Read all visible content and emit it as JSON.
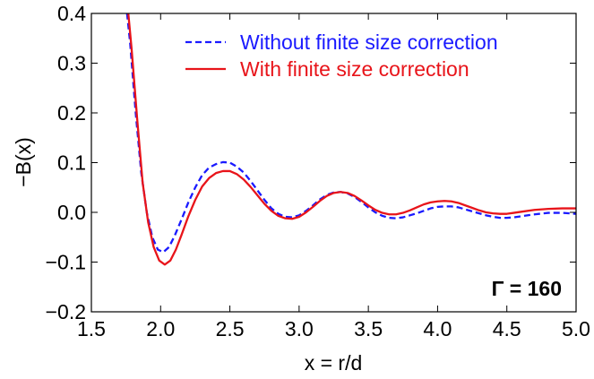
{
  "chart_data": {
    "type": "line",
    "xlabel": "x = r/d",
    "ylabel": "−B(x)",
    "xlim": [
      1.5,
      5.0
    ],
    "ylim": [
      -0.2,
      0.4
    ],
    "xticks": [
      1.5,
      2.0,
      2.5,
      3.0,
      3.5,
      4.0,
      4.5,
      5.0
    ],
    "xtick_labels": [
      "1.5",
      "2.0",
      "2.5",
      "3.0",
      "3.5",
      "4.0",
      "4.5",
      "5.0"
    ],
    "yticks": [
      -0.2,
      -0.1,
      0.0,
      0.1,
      0.2,
      0.3,
      0.4
    ],
    "ytick_labels": [
      "−0.2",
      "−0.1",
      "0.0",
      "0.1",
      "0.2",
      "0.3",
      "0.4"
    ],
    "grid": false,
    "legend_position": "top-right",
    "annotation": "Γ = 160",
    "series": [
      {
        "name": "Without finite size correction",
        "color": "#1a1aff",
        "style": "dashed",
        "points": [
          [
            1.75,
            0.42
          ],
          [
            1.78,
            0.34
          ],
          [
            1.82,
            0.2
          ],
          [
            1.86,
            0.08
          ],
          [
            1.9,
            0.0
          ],
          [
            1.94,
            -0.05
          ],
          [
            1.98,
            -0.075
          ],
          [
            2.02,
            -0.08
          ],
          [
            2.06,
            -0.07
          ],
          [
            2.1,
            -0.048
          ],
          [
            2.15,
            -0.015
          ],
          [
            2.2,
            0.02
          ],
          [
            2.25,
            0.05
          ],
          [
            2.3,
            0.075
          ],
          [
            2.35,
            0.09
          ],
          [
            2.4,
            0.097
          ],
          [
            2.45,
            0.101
          ],
          [
            2.5,
            0.1
          ],
          [
            2.55,
            0.092
          ],
          [
            2.6,
            0.08
          ],
          [
            2.65,
            0.063
          ],
          [
            2.7,
            0.044
          ],
          [
            2.75,
            0.025
          ],
          [
            2.8,
            0.008
          ],
          [
            2.85,
            -0.003
          ],
          [
            2.9,
            -0.009
          ],
          [
            2.95,
            -0.01
          ],
          [
            3.0,
            -0.006
          ],
          [
            3.05,
            0.003
          ],
          [
            3.1,
            0.014
          ],
          [
            3.15,
            0.026
          ],
          [
            3.2,
            0.035
          ],
          [
            3.25,
            0.04
          ],
          [
            3.3,
            0.041
          ],
          [
            3.35,
            0.038
          ],
          [
            3.4,
            0.031
          ],
          [
            3.45,
            0.021
          ],
          [
            3.5,
            0.01
          ],
          [
            3.55,
            0.0
          ],
          [
            3.6,
            -0.007
          ],
          [
            3.65,
            -0.011
          ],
          [
            3.7,
            -0.012
          ],
          [
            3.75,
            -0.01
          ],
          [
            3.8,
            -0.006
          ],
          [
            3.85,
            -0.002
          ],
          [
            3.9,
            0.003
          ],
          [
            3.95,
            0.008
          ],
          [
            4.0,
            0.011
          ],
          [
            4.05,
            0.012
          ],
          [
            4.1,
            0.012
          ],
          [
            4.15,
            0.01
          ],
          [
            4.2,
            0.006
          ],
          [
            4.25,
            0.002
          ],
          [
            4.3,
            -0.002
          ],
          [
            4.35,
            -0.006
          ],
          [
            4.4,
            -0.009
          ],
          [
            4.45,
            -0.011
          ],
          [
            4.5,
            -0.011
          ],
          [
            4.55,
            -0.01
          ],
          [
            4.6,
            -0.008
          ],
          [
            4.7,
            -0.004
          ],
          [
            4.8,
            -0.001
          ],
          [
            4.9,
            -0.001
          ],
          [
            5.0,
            -0.003
          ]
        ]
      },
      {
        "name": "With finite size correction",
        "color": "#e8141a",
        "style": "solid",
        "points": [
          [
            1.76,
            0.42
          ],
          [
            1.79,
            0.33
          ],
          [
            1.83,
            0.19
          ],
          [
            1.87,
            0.06
          ],
          [
            1.91,
            -0.02
          ],
          [
            1.95,
            -0.07
          ],
          [
            1.99,
            -0.097
          ],
          [
            2.03,
            -0.105
          ],
          [
            2.07,
            -0.097
          ],
          [
            2.11,
            -0.075
          ],
          [
            2.15,
            -0.046
          ],
          [
            2.2,
            -0.008
          ],
          [
            2.25,
            0.025
          ],
          [
            2.3,
            0.052
          ],
          [
            2.35,
            0.069
          ],
          [
            2.4,
            0.079
          ],
          [
            2.45,
            0.083
          ],
          [
            2.5,
            0.083
          ],
          [
            2.55,
            0.077
          ],
          [
            2.6,
            0.066
          ],
          [
            2.65,
            0.051
          ],
          [
            2.7,
            0.034
          ],
          [
            2.75,
            0.017
          ],
          [
            2.8,
            0.003
          ],
          [
            2.85,
            -0.007
          ],
          [
            2.9,
            -0.012
          ],
          [
            2.95,
            -0.013
          ],
          [
            3.0,
            -0.009
          ],
          [
            3.05,
            0.0
          ],
          [
            3.1,
            0.011
          ],
          [
            3.15,
            0.023
          ],
          [
            3.2,
            0.033
          ],
          [
            3.25,
            0.039
          ],
          [
            3.3,
            0.041
          ],
          [
            3.35,
            0.039
          ],
          [
            3.4,
            0.033
          ],
          [
            3.45,
            0.024
          ],
          [
            3.5,
            0.014
          ],
          [
            3.55,
            0.005
          ],
          [
            3.6,
            -0.001
          ],
          [
            3.65,
            -0.004
          ],
          [
            3.7,
            -0.004
          ],
          [
            3.75,
            -0.001
          ],
          [
            3.8,
            0.004
          ],
          [
            3.85,
            0.01
          ],
          [
            3.9,
            0.016
          ],
          [
            3.95,
            0.02
          ],
          [
            4.0,
            0.022
          ],
          [
            4.05,
            0.023
          ],
          [
            4.1,
            0.022
          ],
          [
            4.15,
            0.019
          ],
          [
            4.2,
            0.014
          ],
          [
            4.25,
            0.009
          ],
          [
            4.3,
            0.004
          ],
          [
            4.35,
            0.0
          ],
          [
            4.4,
            -0.002
          ],
          [
            4.45,
            -0.003
          ],
          [
            4.5,
            -0.003
          ],
          [
            4.55,
            -0.001
          ],
          [
            4.6,
            0.001
          ],
          [
            4.7,
            0.005
          ],
          [
            4.8,
            0.007
          ],
          [
            4.9,
            0.008
          ],
          [
            5.0,
            0.008
          ]
        ]
      }
    ]
  }
}
